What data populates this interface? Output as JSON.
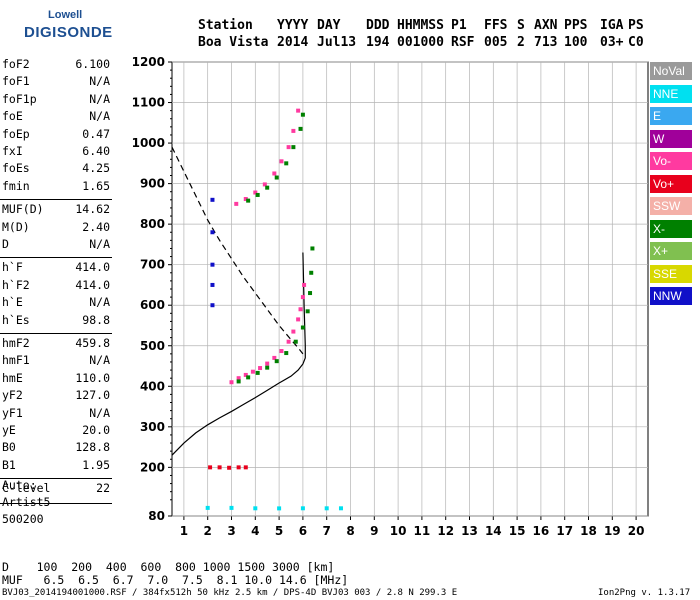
{
  "logo": {
    "line1": "Lowell",
    "line2": "DIGISONDE"
  },
  "header": {
    "row1": [
      {
        "text": "Station"
      },
      {
        "text": "YYYY"
      },
      {
        "text": "DAY"
      },
      {
        "text": "DDD"
      },
      {
        "text": "HHMMSS"
      },
      {
        "text": "P1"
      },
      {
        "text": "FFS"
      },
      {
        "text": "S"
      },
      {
        "text": "AXN"
      },
      {
        "text": "PPS"
      },
      {
        "text": "IGA"
      },
      {
        "text": "PS"
      }
    ],
    "row2": [
      {
        "text": "Boa Vista"
      },
      {
        "text": "2014"
      },
      {
        "text": "Jul13"
      },
      {
        "text": "194"
      },
      {
        "text": "001000"
      },
      {
        "text": "RSF"
      },
      {
        "text": "005"
      },
      {
        "text": "2"
      },
      {
        "text": "713"
      },
      {
        "text": "100"
      },
      {
        "text": "03+"
      },
      {
        "text": "C0"
      }
    ]
  },
  "params": [
    [
      {
        "name": "foF2",
        "value": "6.100"
      },
      {
        "name": "foF1",
        "value": "N/A"
      },
      {
        "name": "foF1p",
        "value": "N/A"
      },
      {
        "name": "foE",
        "value": "N/A"
      },
      {
        "name": "foEp",
        "value": "0.47"
      },
      {
        "name": "fxI",
        "value": "6.40"
      },
      {
        "name": "foEs",
        "value": "4.25"
      },
      {
        "name": "fmin",
        "value": "1.65"
      }
    ],
    [
      {
        "name": "MUF(D)",
        "value": "14.62"
      },
      {
        "name": "M(D)",
        "value": "2.40"
      },
      {
        "name": "D",
        "value": "N/A"
      }
    ],
    [
      {
        "name": "h`F",
        "value": "414.0"
      },
      {
        "name": "h`F2",
        "value": "414.0"
      },
      {
        "name": "h`E",
        "value": "N/A"
      },
      {
        "name": "h`Es",
        "value": "98.8"
      }
    ],
    [
      {
        "name": "hmF2",
        "value": "459.8"
      },
      {
        "name": "hmF1",
        "value": "N/A"
      },
      {
        "name": "hmE",
        "value": "110.0"
      },
      {
        "name": "yF2",
        "value": "127.0"
      },
      {
        "name": "yF1",
        "value": "N/A"
      },
      {
        "name": "yE",
        "value": "20.0"
      },
      {
        "name": "B0",
        "value": "128.8"
      },
      {
        "name": "B1",
        "value": "1.95"
      }
    ],
    [
      {
        "name": "C-level",
        "value": "22"
      }
    ]
  ],
  "auto": {
    "line1": "Auto:",
    "line2": "Artist5",
    "line3": "500200"
  },
  "legend": [
    {
      "label": "NoVal",
      "color": "#9a9a9a"
    },
    {
      "label": "NNE",
      "color": "#00e0f0"
    },
    {
      "label": "E",
      "color": "#3aa8f0"
    },
    {
      "label": "W",
      "color": "#a0009a"
    },
    {
      "label": "Vo-",
      "color": "#ff3aa0"
    },
    {
      "label": "Vo+",
      "color": "#e8001c"
    },
    {
      "label": "SSW",
      "color": "#f4b0a8"
    },
    {
      "label": "X-",
      "color": "#008000"
    },
    {
      "label": "X+",
      "color": "#80c050"
    },
    {
      "label": "SSE",
      "color": "#d8d800"
    },
    {
      "label": "NNW",
      "color": "#1010c8"
    }
  ],
  "bottom": {
    "d_row": "D    100  200  400  600  800 1000 1500 3000 [km]",
    "muf_row": "MUF   6.5  6.5  6.7  7.0  7.5  8.1 10.0 14.6 [MHz]"
  },
  "footer": {
    "left": "BVJ03_2014194001000.RSF / 384fx512h 50 kHz 2.5 km / DPS-4D BVJ03 003 / 2.8 N 299.3 E",
    "right": "Ion2Png v. 1.3.17"
  },
  "chart_data": {
    "type": "scatter",
    "x_ticks": [
      1,
      2,
      3,
      4,
      5,
      6,
      7,
      8,
      9,
      10,
      11,
      12,
      13,
      14,
      15,
      16,
      17,
      18,
      19,
      20
    ],
    "y_ticks": [
      80,
      200,
      300,
      400,
      500,
      600,
      700,
      800,
      900,
      1000,
      1100,
      1200
    ],
    "xlim": [
      0.5,
      20.5
    ],
    "ylim": [
      80,
      1200
    ],
    "grid": true,
    "series": [
      {
        "trace": "o-trace",
        "color": "#ff3aa0",
        "x": [
          3.0,
          3.3,
          3.6,
          3.9,
          4.2,
          4.5,
          4.8,
          5.1,
          5.4,
          5.6,
          5.8,
          5.9,
          6.0,
          6.05
        ],
        "y": [
          410,
          420,
          428,
          436,
          445,
          456,
          470,
          487,
          510,
          535,
          565,
          590,
          620,
          650
        ]
      },
      {
        "trace": "x-trace",
        "color": "#008000",
        "x": [
          3.3,
          3.7,
          4.1,
          4.5,
          4.9,
          5.3,
          5.7,
          6.0,
          6.2,
          6.3,
          6.35,
          6.4
        ],
        "y": [
          412,
          422,
          433,
          446,
          462,
          482,
          510,
          545,
          585,
          630,
          680,
          740
        ]
      },
      {
        "trace": "multi-hop-o",
        "color": "#ff3aa0",
        "x": [
          3.2,
          3.6,
          4.0,
          4.4,
          4.8,
          5.1,
          5.4,
          5.6,
          5.8
        ],
        "y": [
          850,
          862,
          878,
          898,
          925,
          955,
          990,
          1030,
          1080
        ]
      },
      {
        "trace": "multi-hop-x",
        "color": "#008000",
        "x": [
          3.7,
          4.1,
          4.5,
          4.9,
          5.3,
          5.6,
          5.9,
          6.0
        ],
        "y": [
          858,
          872,
          890,
          915,
          950,
          990,
          1035,
          1070
        ]
      },
      {
        "trace": "Es",
        "color": "#00e0f0",
        "x": [
          2.0,
          3.0,
          4.0,
          5.0,
          6.0,
          7.0,
          7.6
        ],
        "y": [
          100,
          100,
          99,
          98.8,
          99,
          99,
          99
        ]
      },
      {
        "trace": "spread-F",
        "color": "#1010c8",
        "x": [
          2.2,
          2.2,
          2.2,
          2.2,
          2.2
        ],
        "y": [
          600,
          650,
          700,
          780,
          860
        ]
      },
      {
        "trace": "F-echo-200km",
        "color": "#e8001c",
        "x": [
          2.1,
          2.5,
          2.9,
          3.3,
          3.6
        ],
        "y": [
          200,
          200,
          199,
          200,
          200
        ]
      }
    ],
    "profile_solid": {
      "x": [
        0.5,
        1.0,
        1.5,
        2.0,
        2.5,
        3.0,
        3.5,
        4.0,
        4.5,
        5.0,
        5.5,
        5.8,
        6.0,
        6.1,
        6.1,
        6.05,
        6.0
      ],
      "y": [
        230,
        260,
        285,
        305,
        322,
        338,
        355,
        372,
        390,
        408,
        425,
        440,
        455,
        470,
        500,
        600,
        730
      ]
    },
    "profile_dashed": {
      "x": [
        0.5,
        1.0,
        1.5,
        2.0,
        2.5,
        3.0,
        3.5,
        4.0,
        4.5,
        5.0,
        5.5,
        5.8,
        6.0
      ],
      "y": [
        990,
        930,
        870,
        810,
        760,
        715,
        670,
        630,
        590,
        550,
        515,
        495,
        480
      ]
    }
  }
}
